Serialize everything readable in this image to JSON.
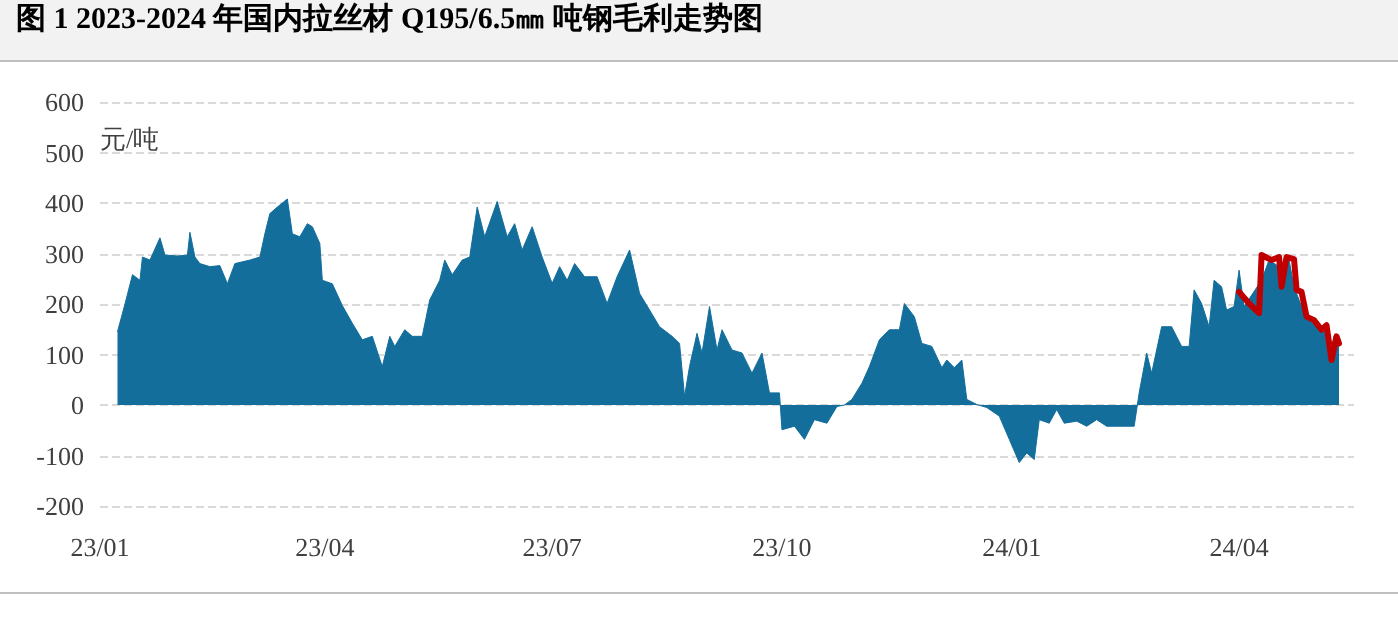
{
  "chart_data": {
    "type": "area",
    "title": "图 1 2023-2024 年国内拉丝材 Q195/6.5㎜ 吨钢毛利走势图",
    "ylabel": "元/吨",
    "xlim": [
      "2023-01-01",
      "2024-05-17"
    ],
    "xticks": [
      {
        "value": "2023-01-01",
        "label": "23/01"
      },
      {
        "value": "2023-04-01",
        "label": "23/04"
      },
      {
        "value": "2023-07-01",
        "label": "23/07"
      },
      {
        "value": "2023-10-01",
        "label": "23/10"
      },
      {
        "value": "2024-01-01",
        "label": "24/01"
      },
      {
        "value": "2024-04-01",
        "label": "24/04"
      }
    ],
    "ylim": [
      -200,
      600
    ],
    "yticks": [
      -200,
      -100,
      0,
      100,
      200,
      300,
      400,
      500,
      600
    ],
    "grid": "y",
    "series": [
      {
        "color": "#136e9c",
        "x": [
          "2023-01-08",
          "2023-01-11",
          "2023-01-14",
          "2023-01-17",
          "2023-01-18",
          "2023-01-21",
          "2023-01-25",
          "2023-01-27",
          "2023-02-01",
          "2023-02-05",
          "2023-02-06",
          "2023-02-08",
          "2023-02-10",
          "2023-02-14",
          "2023-02-18",
          "2023-02-21",
          "2023-02-24",
          "2023-03-02",
          "2023-03-06",
          "2023-03-08",
          "2023-03-10",
          "2023-03-13",
          "2023-03-17",
          "2023-03-19",
          "2023-03-22",
          "2023-03-25",
          "2023-03-27",
          "2023-03-30",
          "2023-03-31",
          "2023-04-04",
          "2023-04-08",
          "2023-04-12",
          "2023-04-16",
          "2023-04-20",
          "2023-04-24",
          "2023-04-27",
          "2023-04-29",
          "2023-05-03",
          "2023-05-06",
          "2023-05-10",
          "2023-05-13",
          "2023-05-17",
          "2023-05-19",
          "2023-05-22",
          "2023-05-26",
          "2023-05-29",
          "2023-06-01",
          "2023-06-04",
          "2023-06-09",
          "2023-06-13",
          "2023-06-16",
          "2023-06-19",
          "2023-06-23",
          "2023-06-27",
          "2023-07-01",
          "2023-07-04",
          "2023-07-07",
          "2023-07-10",
          "2023-07-14",
          "2023-07-19",
          "2023-07-23",
          "2023-07-27",
          "2023-08-01",
          "2023-08-05",
          "2023-08-09",
          "2023-08-13",
          "2023-08-18",
          "2023-08-21",
          "2023-08-23",
          "2023-08-25",
          "2023-08-28",
          "2023-08-30",
          "2023-09-02",
          "2023-09-05",
          "2023-09-07",
          "2023-09-11",
          "2023-09-15",
          "2023-09-19",
          "2023-09-23",
          "2023-09-26",
          "2023-09-30",
          "2023-10-01",
          "2023-10-06",
          "2023-10-10",
          "2023-10-14",
          "2023-10-19",
          "2023-10-23",
          "2023-10-26",
          "2023-10-29",
          "2023-11-02",
          "2023-11-05",
          "2023-11-09",
          "2023-11-13",
          "2023-11-17",
          "2023-11-19",
          "2023-11-23",
          "2023-11-26",
          "2023-11-30",
          "2023-12-04",
          "2023-12-06",
          "2023-12-09",
          "2023-12-12",
          "2023-12-14",
          "2023-12-18",
          "2023-12-22",
          "2023-12-27",
          "2023-12-31",
          "2024-01-04",
          "2024-01-07",
          "2024-01-10",
          "2024-01-12",
          "2024-01-16",
          "2024-01-19",
          "2024-01-22",
          "2024-01-27",
          "2024-01-31",
          "2024-02-04",
          "2024-02-08",
          "2024-02-14",
          "2024-02-19",
          "2024-02-21",
          "2024-02-24",
          "2024-02-26",
          "2024-03-01",
          "2024-03-05",
          "2024-03-09",
          "2024-03-12",
          "2024-03-14",
          "2024-03-17",
          "2024-03-20",
          "2024-03-22",
          "2024-03-25",
          "2024-03-27",
          "2024-03-30",
          "2024-04-01",
          "2024-04-03",
          "2024-04-10",
          "2024-04-13",
          "2024-04-17",
          "2024-04-21",
          "2024-04-23",
          "2024-04-27",
          "2024-05-01",
          "2024-05-05",
          "2024-05-07",
          "2024-05-09",
          "2024-05-11"
        ],
        "values": [
          145,
          200,
          258,
          247,
          293,
          287,
          331,
          297,
          295,
          297,
          342,
          293,
          280,
          274,
          276,
          240,
          280,
          287,
          293,
          339,
          379,
          392,
          408,
          339,
          333,
          359,
          353,
          320,
          247,
          240,
          197,
          162,
          129,
          136,
          76,
          136,
          116,
          149,
          136,
          136,
          208,
          247,
          287,
          258,
          287,
          293,
          392,
          333,
          403,
          333,
          359,
          307,
          353,
          293,
          241,
          274,
          247,
          280,
          254,
          254,
          201,
          254,
          307,
          221,
          188,
          155,
          136,
          122,
          17,
          76,
          142,
          103,
          195,
          109,
          149,
          109,
          103,
          63,
          103,
          24,
          24,
          -49,
          -42,
          -68,
          -29,
          -36,
          -3,
          0,
          11,
          43,
          76,
          129,
          149,
          149,
          201,
          175,
          122,
          116,
          74,
          89,
          74,
          89,
          11,
          1,
          -5,
          -22,
          -68,
          -114,
          -95,
          -108,
          -29,
          -36,
          -9,
          -36,
          -32,
          -42,
          -29,
          -42,
          -42,
          -42,
          24,
          103,
          63,
          155,
          155,
          116,
          116,
          228,
          201,
          155,
          247,
          234,
          188,
          195,
          267,
          195,
          247,
          287,
          274,
          287,
          234,
          182,
          162,
          149,
          89,
          136,
          122
        ]
      },
      {
        "type": "line",
        "color": "#c00000",
        "x": [
          "2024-04-01",
          "2024-04-05",
          "2024-04-09",
          "2024-04-10",
          "2024-04-14",
          "2024-04-17",
          "2024-04-18",
          "2024-04-20",
          "2024-04-23",
          "2024-04-24",
          "2024-04-26",
          "2024-04-28",
          "2024-05-01",
          "2024-05-04",
          "2024-05-06",
          "2024-05-08",
          "2024-05-10",
          "2024-05-11"
        ],
        "values": [
          224,
          201,
          182,
          297,
          287,
          293,
          234,
          293,
          289,
          228,
          224,
          175,
          168,
          149,
          158,
          89,
          136,
          122
        ]
      }
    ]
  }
}
